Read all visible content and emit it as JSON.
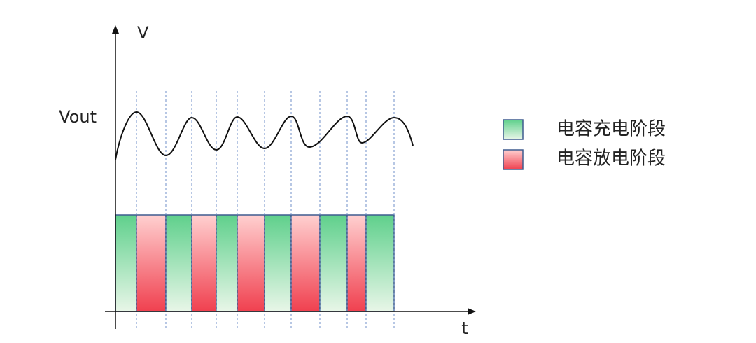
{
  "axes": {
    "y_label": "V",
    "x_label": "t",
    "level_label": "Vout"
  },
  "legend": [
    {
      "label": "电容充电阶段"
    },
    {
      "label": "电容放电阶段"
    }
  ]
}
